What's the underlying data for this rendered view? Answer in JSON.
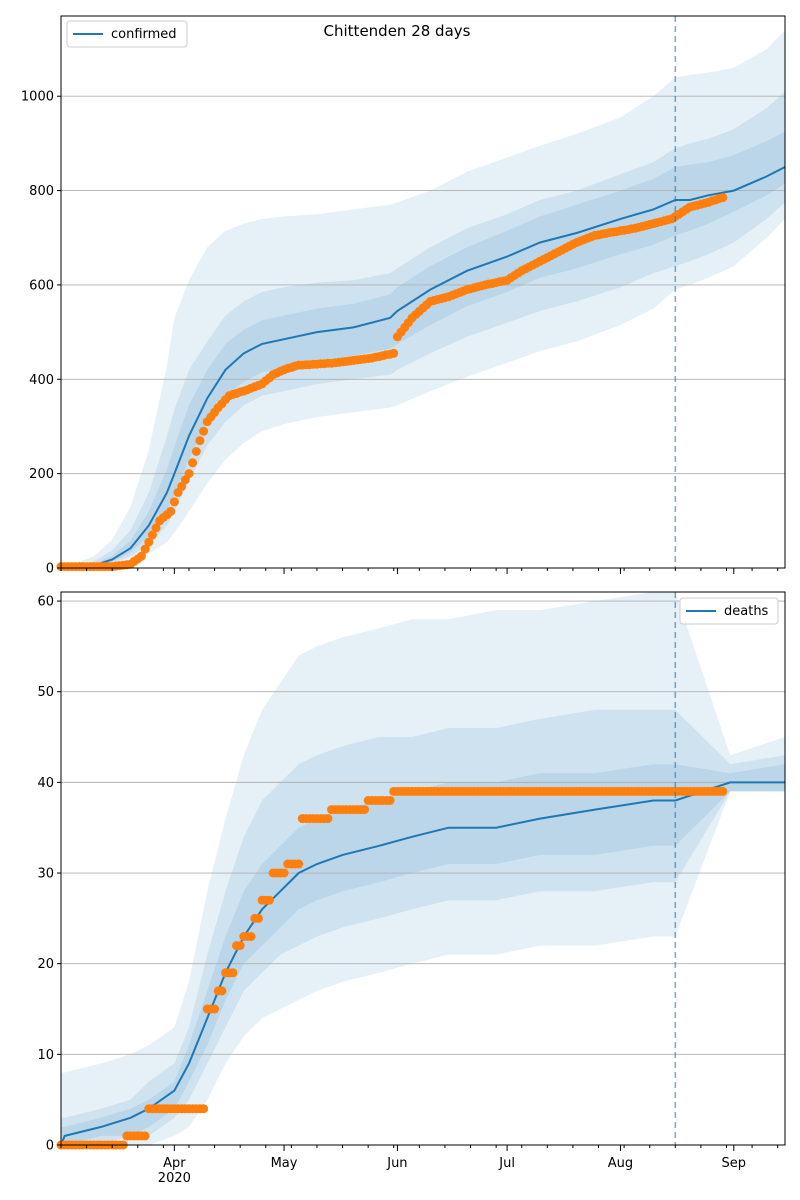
{
  "chart_data": [
    {
      "type": "line",
      "title": "Chittenden 28 days",
      "xlabel": "",
      "ylabel": "",
      "x_range": [
        "2020-03-01",
        "2020-09-15"
      ],
      "ylim": [
        0,
        1170
      ],
      "y_ticks": [
        0,
        200,
        400,
        600,
        800,
        1000
      ],
      "x_ticks": [
        {
          "date": "2020-04-01",
          "label": "Apr",
          "sublabel": "2020"
        },
        {
          "date": "2020-05-01",
          "label": "May",
          "sublabel": ""
        },
        {
          "date": "2020-06-01",
          "label": "Jun",
          "sublabel": ""
        },
        {
          "date": "2020-07-01",
          "label": "Jul",
          "sublabel": ""
        },
        {
          "date": "2020-08-01",
          "label": "Aug",
          "sublabel": ""
        },
        {
          "date": "2020-09-01",
          "label": "Sep",
          "sublabel": ""
        }
      ],
      "grid": "horizontal",
      "legend_position": "top-left",
      "forecast_start": "2020-08-16",
      "series": [
        {
          "name": "confirmed",
          "role": "model median",
          "color": "#1f77b4",
          "x": [
            "2020-03-01",
            "2020-03-05",
            "2020-03-10",
            "2020-03-15",
            "2020-03-20",
            "2020-03-25",
            "2020-03-30",
            "2020-04-01",
            "2020-04-05",
            "2020-04-10",
            "2020-04-15",
            "2020-04-20",
            "2020-04-25",
            "2020-05-01",
            "2020-05-10",
            "2020-05-20",
            "2020-05-30",
            "2020-06-01",
            "2020-06-10",
            "2020-06-20",
            "2020-07-01",
            "2020-07-10",
            "2020-07-20",
            "2020-08-01",
            "2020-08-10",
            "2020-08-16",
            "2020-08-20",
            "2020-08-25",
            "2020-09-01",
            "2020-09-10",
            "2020-09-15"
          ],
          "values": [
            0,
            1,
            5,
            18,
            42,
            90,
            160,
            200,
            280,
            360,
            420,
            455,
            475,
            485,
            500,
            510,
            530,
            545,
            590,
            630,
            660,
            690,
            710,
            740,
            760,
            780,
            780,
            790,
            800,
            830,
            850
          ]
        },
        {
          "name": "",
          "role": "observed",
          "color": "#ff7f0e",
          "x": [
            "2020-03-01",
            "2020-03-10",
            "2020-03-15",
            "2020-03-20",
            "2020-03-23",
            "2020-03-25",
            "2020-03-28",
            "2020-03-31",
            "2020-04-02",
            "2020-04-05",
            "2020-04-08",
            "2020-04-10",
            "2020-04-13",
            "2020-04-16",
            "2020-04-20",
            "2020-04-25",
            "2020-04-28",
            "2020-05-01",
            "2020-05-05",
            "2020-05-10",
            "2020-05-15",
            "2020-05-20",
            "2020-05-25",
            "2020-05-31",
            "2020-06-01",
            "2020-06-05",
            "2020-06-10",
            "2020-06-15",
            "2020-06-20",
            "2020-06-25",
            "2020-07-01",
            "2020-07-05",
            "2020-07-10",
            "2020-07-15",
            "2020-07-20",
            "2020-07-25",
            "2020-07-30",
            "2020-08-05",
            "2020-08-10",
            "2020-08-15",
            "2020-08-20",
            "2020-08-25",
            "2020-08-29"
          ],
          "values": [
            3,
            3,
            3,
            8,
            25,
            55,
            100,
            120,
            160,
            200,
            270,
            310,
            340,
            365,
            375,
            390,
            410,
            420,
            430,
            432,
            435,
            440,
            445,
            455,
            490,
            530,
            565,
            575,
            590,
            600,
            610,
            630,
            650,
            670,
            690,
            705,
            712,
            720,
            730,
            740,
            765,
            775,
            785
          ]
        }
      ],
      "bands_note": "nested prediction intervals around the model median",
      "bands": [
        {
          "lower": [
            0,
            0,
            0,
            5,
            15,
            30,
            55,
            75,
            120,
            180,
            230,
            265,
            290,
            305,
            320,
            330,
            340,
            345,
            375,
            405,
            435,
            460,
            480,
            515,
            550,
            590,
            600,
            615,
            640,
            700,
            740
          ],
          "upper": [
            5,
            10,
            25,
            60,
            130,
            250,
            430,
            530,
            610,
            680,
            715,
            730,
            740,
            745,
            750,
            760,
            770,
            775,
            800,
            840,
            870,
            895,
            920,
            955,
            1000,
            1040,
            1045,
            1050,
            1060,
            1100,
            1140
          ]
        },
        {
          "lower": [
            0,
            0,
            2,
            9,
            25,
            50,
            90,
            120,
            185,
            260,
            310,
            345,
            365,
            375,
            390,
            400,
            410,
            420,
            455,
            490,
            520,
            545,
            565,
            595,
            625,
            640,
            650,
            665,
            690,
            740,
            775
          ],
          "upper": [
            2,
            5,
            14,
            38,
            80,
            160,
            280,
            335,
            420,
            480,
            535,
            565,
            585,
            595,
            605,
            610,
            625,
            635,
            680,
            720,
            750,
            780,
            800,
            835,
            860,
            890,
            900,
            910,
            930,
            975,
            1010
          ]
        },
        {
          "lower": [
            0,
            1,
            4,
            13,
            33,
            68,
            122,
            158,
            230,
            310,
            365,
            395,
            415,
            425,
            440,
            450,
            465,
            475,
            515,
            555,
            585,
            615,
            635,
            665,
            685,
            705,
            715,
            730,
            755,
            790,
            815
          ],
          "upper": [
            1,
            3,
            8,
            26,
            58,
            120,
            210,
            258,
            345,
            420,
            475,
            505,
            525,
            535,
            550,
            560,
            580,
            595,
            640,
            680,
            715,
            745,
            770,
            800,
            825,
            850,
            855,
            860,
            875,
            905,
            925
          ]
        }
      ]
    },
    {
      "type": "line",
      "title": "",
      "xlabel": "",
      "ylabel": "",
      "x_range": [
        "2020-03-01",
        "2020-09-15"
      ],
      "ylim": [
        0,
        61
      ],
      "y_ticks": [
        0,
        10,
        20,
        30,
        40,
        50,
        60
      ],
      "x_ticks": [
        {
          "date": "2020-04-01",
          "label": "Apr",
          "sublabel": "2020"
        },
        {
          "date": "2020-05-01",
          "label": "May",
          "sublabel": ""
        },
        {
          "date": "2020-06-01",
          "label": "Jun",
          "sublabel": ""
        },
        {
          "date": "2020-07-01",
          "label": "Jul",
          "sublabel": ""
        },
        {
          "date": "2020-08-01",
          "label": "Aug",
          "sublabel": ""
        },
        {
          "date": "2020-09-01",
          "label": "Sep",
          "sublabel": ""
        }
      ],
      "grid": "horizontal",
      "legend_position": "top-right",
      "forecast_start": "2020-08-16",
      "series": [
        {
          "name": "deaths",
          "role": "model median",
          "color": "#1f77b4",
          "x": [
            "2020-03-01",
            "2020-03-02",
            "2020-03-12",
            "2020-03-20",
            "2020-03-25",
            "2020-04-01",
            "2020-04-05",
            "2020-04-10",
            "2020-04-15",
            "2020-04-20",
            "2020-04-25",
            "2020-04-30",
            "2020-05-05",
            "2020-05-10",
            "2020-05-17",
            "2020-05-27",
            "2020-06-05",
            "2020-06-15",
            "2020-06-28",
            "2020-07-10",
            "2020-07-25",
            "2020-08-10",
            "2020-08-16",
            "2020-08-31",
            "2020-09-15"
          ],
          "values": [
            0,
            1,
            2,
            3,
            4,
            6,
            9,
            14,
            19,
            23,
            26,
            28,
            30,
            31,
            32,
            33,
            34,
            35,
            35,
            36,
            37,
            38,
            38,
            40,
            40
          ]
        },
        {
          "name": "",
          "role": "observed",
          "color": "#ff7f0e",
          "x": [
            "2020-03-01",
            "2020-03-22",
            "2020-03-25",
            "2020-04-01",
            "2020-04-08",
            "2020-04-10",
            "2020-04-13",
            "2020-04-15",
            "2020-04-18",
            "2020-04-20",
            "2020-04-23",
            "2020-04-25",
            "2020-04-28",
            "2020-05-02",
            "2020-05-06",
            "2020-05-15",
            "2020-05-25",
            "2020-05-31",
            "2020-06-15",
            "2020-07-01",
            "2020-07-20",
            "2020-08-16",
            "2020-08-29"
          ],
          "values": [
            0,
            1,
            4,
            4,
            4,
            15,
            17,
            19,
            22,
            23,
            25,
            27,
            30,
            31,
            36,
            37,
            38,
            39,
            39,
            39,
            39,
            39,
            39
          ]
        }
      ],
      "bands_note": "nested prediction intervals around the model median",
      "bands": [
        {
          "lower": [
            0,
            0,
            0,
            0,
            0,
            1,
            2,
            5,
            9,
            12,
            14,
            15,
            16,
            17,
            18,
            19,
            20,
            21,
            21,
            22,
            22,
            23,
            23,
            39,
            39
          ],
          "upper": [
            8,
            8,
            9,
            10,
            11,
            13,
            18,
            28,
            36,
            43,
            48,
            51,
            54,
            55,
            56,
            57,
            58,
            58,
            59,
            59,
            60,
            61,
            61,
            43,
            45
          ]
        },
        {
          "lower": [
            0,
            0,
            0,
            1,
            1,
            3,
            5,
            9,
            13,
            17,
            19,
            21,
            22,
            23,
            24,
            25,
            26,
            27,
            27,
            28,
            28,
            29,
            29,
            39,
            39
          ],
          "upper": [
            3,
            3,
            4,
            5,
            7,
            9,
            13,
            21,
            28,
            34,
            38,
            40,
            42,
            43,
            44,
            45,
            45,
            46,
            46,
            47,
            48,
            48,
            48,
            42,
            43
          ]
        },
        {
          "lower": [
            0,
            0,
            1,
            1,
            2,
            4,
            7,
            11,
            16,
            20,
            22,
            24,
            26,
            27,
            28,
            29,
            30,
            31,
            31,
            32,
            32,
            33,
            33,
            39,
            39
          ],
          "upper": [
            2,
            2,
            3,
            4,
            5,
            7,
            11,
            17,
            23,
            28,
            31,
            33,
            35,
            36,
            37,
            38,
            39,
            40,
            40,
            41,
            41,
            42,
            42,
            41,
            42
          ]
        }
      ]
    }
  ]
}
